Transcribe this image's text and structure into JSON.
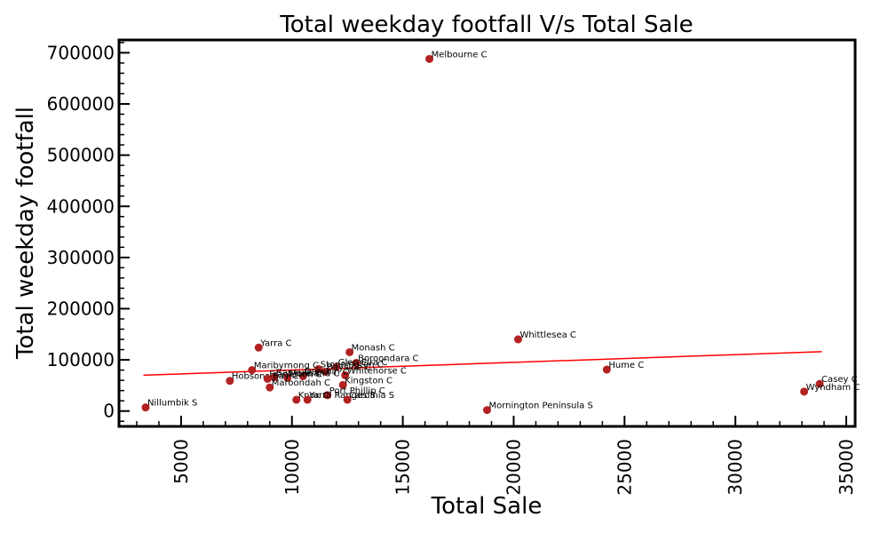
{
  "chart_data": {
    "type": "scatter",
    "title": "Total weekday footfall V/s Total Sale",
    "xlabel": "Total Sale",
    "ylabel": "Total weekday footfall",
    "xlim": [
      2200,
      35400
    ],
    "ylim": [
      -30000,
      725000
    ],
    "xticks": [
      5000,
      10000,
      15000,
      20000,
      25000,
      30000,
      35000
    ],
    "xtick_labels": [
      "5000",
      "10000",
      "15000",
      "20000",
      "25000",
      "30000",
      "35000"
    ],
    "yticks": [
      0,
      100000,
      200000,
      300000,
      400000,
      500000,
      600000,
      700000
    ],
    "ytick_labels": [
      "0",
      "100000",
      "200000",
      "300000",
      "400000",
      "500000",
      "600000",
      "700000"
    ],
    "grid": false,
    "point_color": "#b22222",
    "trend_color": "#ff0000",
    "trendline": {
      "x": [
        3300,
        33900
      ],
      "y": [
        70000,
        116000
      ]
    },
    "points": [
      {
        "label": "Melbourne C",
        "x": 16200,
        "y": 688000
      },
      {
        "label": "Whittlesea C",
        "x": 20200,
        "y": 140000
      },
      {
        "label": "Monash C",
        "x": 12600,
        "y": 115000
      },
      {
        "label": "Yarra C",
        "x": 8500,
        "y": 124000
      },
      {
        "label": "Boroondara C",
        "x": 12900,
        "y": 94000
      },
      {
        "label": "Glen Eira C",
        "x": 12000,
        "y": 86000
      },
      {
        "label": "Stonnington C",
        "x": 11200,
        "y": 82000
      },
      {
        "label": "Maribyrnong C",
        "x": 8200,
        "y": 80000
      },
      {
        "label": "Hume C",
        "x": 24200,
        "y": 81000
      },
      {
        "label": "Bayside C",
        "x": 11500,
        "y": 77000
      },
      {
        "label": "Whitehorse C",
        "x": 12400,
        "y": 70000
      },
      {
        "label": "Darebin C",
        "x": 10500,
        "y": 68000
      },
      {
        "label": "Banyule C",
        "x": 9200,
        "y": 66000
      },
      {
        "label": "Moreland C",
        "x": 9800,
        "y": 65000
      },
      {
        "label": "Hobsons Bay C",
        "x": 7200,
        "y": 59000
      },
      {
        "label": "Frankston C",
        "x": 8900,
        "y": 63000
      },
      {
        "label": "Kingston C",
        "x": 12300,
        "y": 51000
      },
      {
        "label": "Maroondah C",
        "x": 9000,
        "y": 46000
      },
      {
        "label": "Casey C",
        "x": 33800,
        "y": 53000
      },
      {
        "label": "Wyndham C",
        "x": 33100,
        "y": 38000
      },
      {
        "label": "Port Phillip C",
        "x": 11600,
        "y": 31000
      },
      {
        "label": "Knox C",
        "x": 10200,
        "y": 22000
      },
      {
        "label": "Yarra Ranges S",
        "x": 10700,
        "y": 22000
      },
      {
        "label": "Cardinia S",
        "x": 12500,
        "y": 22000
      },
      {
        "label": "Nillumbik S",
        "x": 3400,
        "y": 7000
      },
      {
        "label": "Mornington Peninsula S",
        "x": 18800,
        "y": 2000
      }
    ]
  }
}
